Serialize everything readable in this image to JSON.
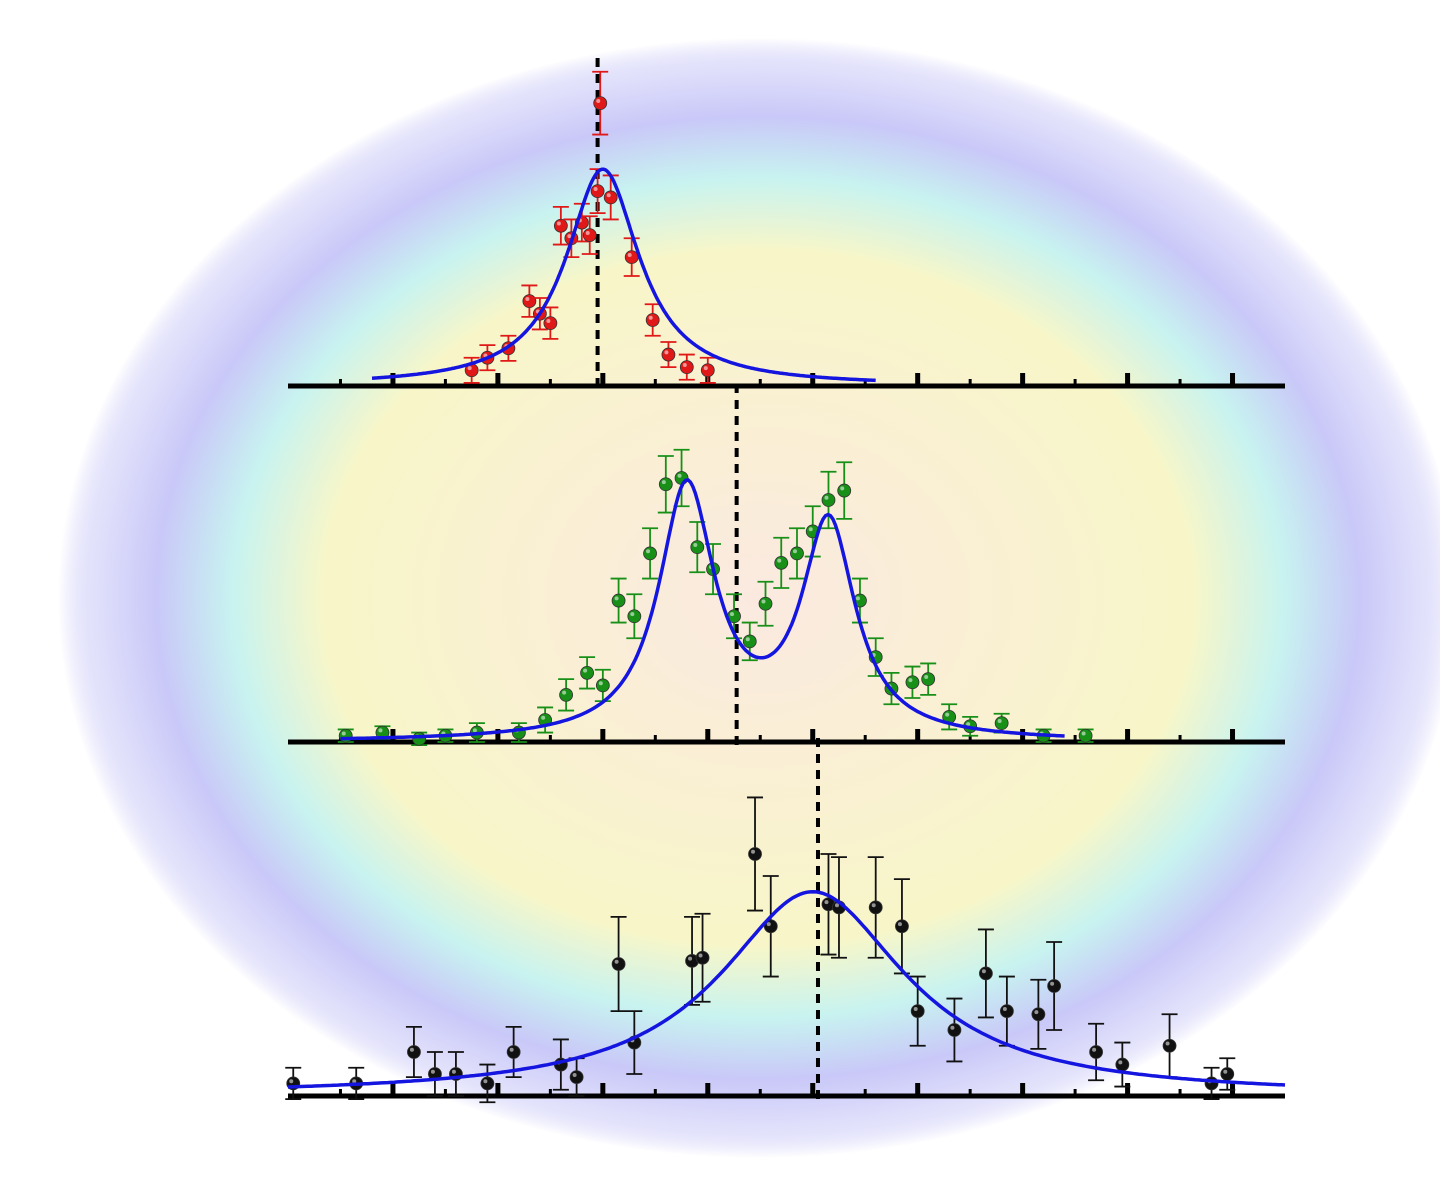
{
  "colors": {
    "fit": "#1515e0",
    "axis": "#000000",
    "halo_inner": "#fbe9e0",
    "halo_mid_yellow": "#f8f6c8",
    "halo_mid_cyan": "#c8f3f0",
    "halo_outer": "#c9c8f8"
  },
  "chart_data": [
    {
      "type": "scatter",
      "title": "",
      "xlabel": "",
      "ylabel": "",
      "xlim": [
        0,
        19
      ],
      "ylim": [
        0,
        1.05
      ],
      "grid": false,
      "legend": "none",
      "reference_line_x": 5.9,
      "series": [
        {
          "color": "#e01818",
          "x": [
            3.5,
            3.8,
            4.2,
            4.6,
            4.8,
            5.0,
            5.2,
            5.4,
            5.6,
            5.75,
            5.9,
            5.95,
            6.15,
            6.55,
            6.95,
            7.25,
            7.6,
            8.0
          ],
          "y": [
            0.05,
            0.09,
            0.12,
            0.27,
            0.23,
            0.2,
            0.51,
            0.47,
            0.52,
            0.48,
            0.62,
            0.9,
            0.6,
            0.41,
            0.21,
            0.1,
            0.06,
            0.05
          ],
          "err": [
            0.04,
            0.04,
            0.04,
            0.05,
            0.05,
            0.05,
            0.06,
            0.06,
            0.06,
            0.06,
            0.07,
            0.1,
            0.07,
            0.06,
            0.05,
            0.04,
            0.04,
            0.04
          ]
        }
      ],
      "fit": {
        "model": "lorentzian",
        "peaks": [
          {
            "center": 6.0,
            "amplitude": 0.69,
            "hwhm": 0.85
          }
        ],
        "baseline": 0.0,
        "x_range": [
          1.6,
          11.2
        ]
      }
    },
    {
      "type": "scatter",
      "title": "",
      "xlabel": "",
      "ylabel": "",
      "xlim": [
        0,
        19
      ],
      "ylim": [
        0,
        1.05
      ],
      "grid": false,
      "legend": "none",
      "reference_line_x": 8.55,
      "series": [
        {
          "color": "#189018",
          "x": [
            1.1,
            1.8,
            2.5,
            3.0,
            3.6,
            4.4,
            4.9,
            5.3,
            5.7,
            6.0,
            6.3,
            6.6,
            6.9,
            7.2,
            7.5,
            7.8,
            8.1,
            8.5,
            8.8,
            9.1,
            9.4,
            9.7,
            10.0,
            10.3,
            10.6,
            10.9,
            11.2,
            11.5,
            11.9,
            12.2,
            12.6,
            13.0,
            13.6,
            14.4,
            15.2
          ],
          "y": [
            0.02,
            0.03,
            0.01,
            0.02,
            0.03,
            0.03,
            0.07,
            0.15,
            0.22,
            0.18,
            0.45,
            0.4,
            0.6,
            0.82,
            0.84,
            0.62,
            0.55,
            0.4,
            0.32,
            0.44,
            0.57,
            0.6,
            0.67,
            0.77,
            0.8,
            0.45,
            0.27,
            0.17,
            0.19,
            0.2,
            0.08,
            0.05,
            0.06,
            0.02,
            0.02
          ],
          "err": [
            0.02,
            0.02,
            0.02,
            0.02,
            0.03,
            0.03,
            0.04,
            0.05,
            0.05,
            0.05,
            0.07,
            0.07,
            0.08,
            0.09,
            0.09,
            0.08,
            0.08,
            0.07,
            0.06,
            0.07,
            0.08,
            0.08,
            0.08,
            0.09,
            0.09,
            0.07,
            0.06,
            0.05,
            0.05,
            0.05,
            0.04,
            0.03,
            0.03,
            0.02,
            0.02
          ]
        }
      ],
      "fit": {
        "model": "double_lorentzian",
        "peaks": [
          {
            "center": 7.6,
            "amplitude": 0.8,
            "hwhm": 0.65
          },
          {
            "center": 10.3,
            "amplitude": 0.68,
            "hwhm": 0.62
          }
        ],
        "baseline": 0.0,
        "x_range": [
          1.0,
          14.8
        ]
      }
    },
    {
      "type": "scatter",
      "title": "",
      "xlabel": "",
      "ylabel": "",
      "xlim": [
        0,
        19
      ],
      "ylim": [
        0,
        1.05
      ],
      "grid": false,
      "legend": "none",
      "reference_line_x": 10.1,
      "series": [
        {
          "color": "#111111",
          "x": [
            0.1,
            1.3,
            2.4,
            2.8,
            3.2,
            3.8,
            4.3,
            5.2,
            5.5,
            6.3,
            6.6,
            7.7,
            7.9,
            8.9,
            9.2,
            10.3,
            10.5,
            11.2,
            11.7,
            12.0,
            12.7,
            13.3,
            13.7,
            14.3,
            14.6,
            15.4,
            15.9,
            16.8,
            17.6,
            17.9
          ],
          "y": [
            0.04,
            0.04,
            0.14,
            0.07,
            0.07,
            0.04,
            0.14,
            0.1,
            0.06,
            0.42,
            0.17,
            0.43,
            0.44,
            0.77,
            0.54,
            0.61,
            0.6,
            0.6,
            0.54,
            0.27,
            0.21,
            0.39,
            0.27,
            0.26,
            0.35,
            0.14,
            0.1,
            0.16,
            0.04,
            0.07
          ],
          "err": [
            0.05,
            0.05,
            0.08,
            0.07,
            0.07,
            0.06,
            0.08,
            0.08,
            0.06,
            0.15,
            0.1,
            0.14,
            0.14,
            0.18,
            0.16,
            0.16,
            0.16,
            0.16,
            0.15,
            0.11,
            0.1,
            0.14,
            0.11,
            0.11,
            0.14,
            0.09,
            0.07,
            0.1,
            0.05,
            0.05
          ]
        }
      ],
      "fit": {
        "model": "lorentzian",
        "peaks": [
          {
            "center": 10.0,
            "amplitude": 0.65,
            "hwhm": 2.15
          }
        ],
        "baseline": 0.0,
        "x_range": [
          0.0,
          19.0
        ]
      }
    }
  ]
}
